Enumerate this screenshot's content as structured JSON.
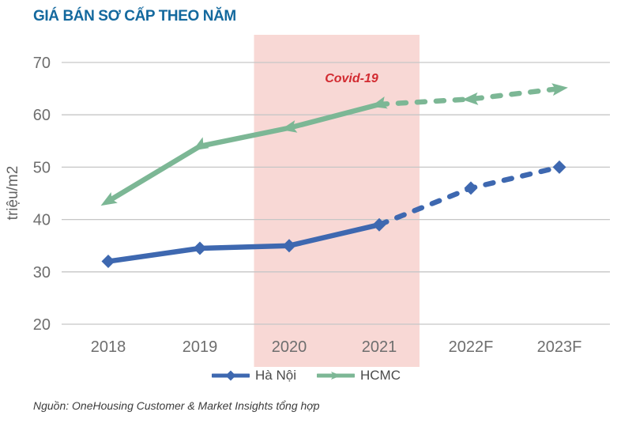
{
  "title": {
    "text": "GIÁ BÁN SƠ CẤP THEO NĂM",
    "color": "#14699e"
  },
  "footer": {
    "source": "Nguồn: OneHousing Customer & Market Insights tổng hợp"
  },
  "chart_data": {
    "type": "line",
    "title": "GIÁ BÁN SƠ CẤP THEO NĂM",
    "xlabel": "",
    "ylabel": "triệu/m2",
    "categories": [
      "2018",
      "2019",
      "2020",
      "2021",
      "2022F",
      "2023F"
    ],
    "series": [
      {
        "name": "Hà Nội",
        "color": "#3e68b0",
        "marker": "diamond",
        "values": [
          32,
          34.5,
          35,
          39,
          46,
          50
        ],
        "solid_through": "2021",
        "forecast_style": "dashed"
      },
      {
        "name": "HCMC",
        "color": "#7cb795",
        "marker": "triangle",
        "values": [
          43.5,
          54,
          57.5,
          62,
          63,
          65
        ],
        "solid_through": "2021",
        "forecast_style": "dashed"
      }
    ],
    "ylim": [
      20,
      70
    ],
    "yticks": [
      20,
      30,
      40,
      50,
      60,
      70
    ],
    "grid": "horizontal",
    "legend_position": "bottom",
    "annotation": {
      "label": "Covid-19",
      "color": "#d22b31",
      "band_from": "2020",
      "band_to": "2021",
      "band_color": "#f8d8d5"
    },
    "style": {
      "gridline_color": "#c6c6c6",
      "tick_label_color": "#6e6e6e",
      "axis_title_color": "#636363"
    }
  }
}
